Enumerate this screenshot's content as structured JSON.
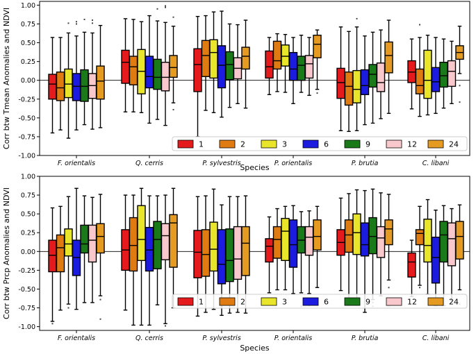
{
  "figure": {
    "legend_title_values": [
      "1",
      "2",
      "3",
      "6",
      "9",
      "12",
      "24"
    ]
  },
  "chart_data": [
    {
      "type": "boxplot",
      "ylabel": "Corr btw Tmean Anomalies and NDVI",
      "xlabel": "Species",
      "ylim": [
        -1.0,
        1.05
      ],
      "yticks": [
        "-1.00",
        "-0.75",
        "-0.50",
        "-0.25",
        "0.00",
        "0.25",
        "0.50",
        "0.75",
        "1.00"
      ],
      "categories": [
        "F. orientalis",
        "Q. cerris",
        "P. sylvestris",
        "P. orientalis",
        "P. brutia",
        "C. libani"
      ],
      "legend": {
        "placement": "lower-right",
        "entries": [
          "1",
          "2",
          "3",
          "6",
          "9",
          "12",
          "24"
        ]
      },
      "series_colors": [
        "#e41a1c",
        "#e07b12",
        "#e8e52a",
        "#1c1ce0",
        "#1a7a1a",
        "#f9c8cc",
        "#e59a22"
      ],
      "boxes": [
        [
          {
            "whislo": -0.7,
            "q1": -0.25,
            "med": -0.05,
            "q3": 0.08,
            "whishi": 0.57,
            "fliers": []
          },
          {
            "whislo": -0.66,
            "q1": -0.27,
            "med": -0.1,
            "q3": 0.11,
            "whishi": 0.57,
            "fliers": []
          },
          {
            "whislo": -0.77,
            "q1": -0.23,
            "med": -0.05,
            "q3": 0.15,
            "whishi": 0.63,
            "fliers": [
              0.76
            ]
          },
          {
            "whislo": -0.66,
            "q1": -0.27,
            "med": -0.08,
            "q3": 0.09,
            "whishi": 0.59,
            "fliers": [
              0.75,
              0.78
            ]
          },
          {
            "whislo": -0.59,
            "q1": -0.28,
            "med": -0.08,
            "q3": 0.14,
            "whishi": 0.64,
            "fliers": [
              0.81
            ]
          },
          {
            "whislo": -0.65,
            "q1": -0.24,
            "med": -0.07,
            "q3": 0.09,
            "whishi": 0.63,
            "fliers": [
              0.76,
              0.8
            ]
          },
          {
            "whislo": -0.63,
            "q1": -0.25,
            "med": -0.01,
            "q3": 0.19,
            "whishi": 0.73,
            "fliers": []
          }
        ],
        [
          {
            "whislo": -0.42,
            "q1": -0.04,
            "med": 0.24,
            "q3": 0.4,
            "whishi": 0.82,
            "fliers": []
          },
          {
            "whislo": -0.42,
            "q1": -0.06,
            "med": 0.18,
            "q3": 0.32,
            "whishi": 0.81,
            "fliers": []
          },
          {
            "whislo": -0.43,
            "q1": -0.18,
            "med": 0.12,
            "q3": 0.41,
            "whishi": 0.78,
            "fliers": []
          },
          {
            "whislo": -0.57,
            "q1": -0.1,
            "med": 0.05,
            "q3": 0.32,
            "whishi": 0.86,
            "fliers": []
          },
          {
            "whislo": -0.52,
            "q1": -0.12,
            "med": 0.04,
            "q3": 0.28,
            "whishi": 0.79,
            "fliers": [
              0.95
            ]
          },
          {
            "whislo": -0.6,
            "q1": -0.14,
            "med": 0.04,
            "q3": 0.24,
            "whishi": 0.77,
            "fliers": [
              0.97,
              0.99
            ]
          },
          {
            "whislo": -0.3,
            "q1": 0.04,
            "med": 0.17,
            "q3": 0.33,
            "whishi": 0.72,
            "fliers": [
              -0.39,
              0.84
            ]
          }
        ],
        [
          {
            "whislo": -0.75,
            "q1": -0.15,
            "med": 0.21,
            "q3": 0.42,
            "whishi": 0.85,
            "fliers": []
          },
          {
            "whislo": -0.4,
            "q1": 0.05,
            "med": 0.33,
            "q3": 0.53,
            "whishi": 0.86,
            "fliers": []
          },
          {
            "whislo": -0.43,
            "q1": 0.03,
            "med": 0.37,
            "q3": 0.54,
            "whishi": 0.91,
            "fliers": []
          },
          {
            "whislo": -0.49,
            "q1": -0.1,
            "med": 0.2,
            "q3": 0.46,
            "whishi": 0.92,
            "fliers": []
          },
          {
            "whislo": -0.36,
            "q1": 0.01,
            "med": 0.21,
            "q3": 0.38,
            "whishi": 0.75,
            "fliers": []
          },
          {
            "whislo": -0.31,
            "q1": 0.02,
            "med": 0.16,
            "q3": 0.3,
            "whishi": 0.74,
            "fliers": []
          },
          {
            "whislo": -0.37,
            "q1": 0.15,
            "med": 0.32,
            "q3": 0.44,
            "whishi": 0.8,
            "fliers": []
          }
        ],
        [
          {
            "whislo": -0.19,
            "q1": 0.03,
            "med": 0.18,
            "q3": 0.39,
            "whishi": 0.57,
            "fliers": []
          },
          {
            "whislo": -0.15,
            "q1": 0.15,
            "med": 0.26,
            "q3": 0.52,
            "whishi": 0.62,
            "fliers": []
          },
          {
            "whislo": -0.16,
            "q1": 0.19,
            "med": 0.32,
            "q3": 0.47,
            "whishi": 0.61,
            "fliers": []
          },
          {
            "whislo": -0.31,
            "q1": 0.0,
            "med": 0.15,
            "q3": 0.37,
            "whishi": 0.57,
            "fliers": []
          },
          {
            "whislo": -0.16,
            "q1": 0.0,
            "med": 0.2,
            "q3": 0.32,
            "whishi": 0.6,
            "fliers": []
          },
          {
            "whislo": -0.2,
            "q1": 0.03,
            "med": 0.22,
            "q3": 0.33,
            "whishi": 0.57,
            "fliers": []
          },
          {
            "whislo": -0.12,
            "q1": 0.3,
            "med": 0.48,
            "q3": 0.6,
            "whishi": 0.67,
            "fliers": [
              -0.17
            ]
          }
        ],
        [
          {
            "whislo": -0.67,
            "q1": -0.24,
            "med": -0.03,
            "q3": 0.16,
            "whishi": 0.71,
            "fliers": []
          },
          {
            "whislo": -0.68,
            "q1": -0.33,
            "med": -0.08,
            "q3": 0.11,
            "whishi": 0.65,
            "fliers": []
          },
          {
            "whislo": -0.67,
            "q1": -0.3,
            "med": -0.12,
            "q3": 0.13,
            "whishi": 0.71,
            "fliers": [
              0.82
            ]
          },
          {
            "whislo": -0.59,
            "q1": -0.19,
            "med": -0.07,
            "q3": 0.14,
            "whishi": 0.59,
            "fliers": []
          },
          {
            "whislo": -0.57,
            "q1": -0.09,
            "med": 0.08,
            "q3": 0.21,
            "whishi": 0.64,
            "fliers": []
          },
          {
            "whislo": -0.51,
            "q1": -0.15,
            "med": -0.03,
            "q3": 0.23,
            "whishi": 0.67,
            "fliers": []
          },
          {
            "whislo": -0.44,
            "q1": 0.1,
            "med": 0.33,
            "q3": 0.51,
            "whishi": 0.8,
            "fliers": []
          }
        ],
        [
          {
            "whislo": -0.38,
            "q1": -0.03,
            "med": 0.11,
            "q3": 0.26,
            "whishi": 0.55,
            "fliers": []
          },
          {
            "whislo": -0.48,
            "q1": -0.18,
            "med": -0.07,
            "q3": 0.15,
            "whishi": 0.57,
            "fliers": [
              0.74
            ]
          },
          {
            "whislo": -0.46,
            "q1": -0.24,
            "med": 0.0,
            "q3": 0.4,
            "whishi": 0.6,
            "fliers": []
          },
          {
            "whislo": -0.44,
            "q1": -0.15,
            "med": -0.02,
            "q3": 0.17,
            "whishi": 0.57,
            "fliers": []
          },
          {
            "whislo": -0.37,
            "q1": -0.09,
            "med": 0.06,
            "q3": 0.24,
            "whishi": 0.55,
            "fliers": []
          },
          {
            "whislo": -0.31,
            "q1": -0.08,
            "med": 0.12,
            "q3": 0.26,
            "whishi": 0.52,
            "fliers": []
          },
          {
            "whislo": 0.09,
            "q1": 0.28,
            "med": 0.37,
            "q3": 0.46,
            "whishi": 0.72,
            "fliers": [
              -0.07,
              -0.29
            ]
          }
        ]
      ]
    },
    {
      "type": "boxplot",
      "ylabel": "Corr btw Prcp Anomalies and NDVI",
      "xlabel": "Species",
      "ylim": [
        -1.05,
        1.0
      ],
      "yticks": [
        "-1.00",
        "-0.75",
        "-0.50",
        "-0.25",
        "0.00",
        "0.25",
        "0.50",
        "0.75",
        "1.00"
      ],
      "categories": [
        "F. orientalis",
        "Q. cerris",
        "P. sylvestris",
        "P. orientalis",
        "P. brutia",
        "C. libani"
      ],
      "legend": {
        "placement": "lower-right",
        "entries": [
          "1",
          "2",
          "3",
          "6",
          "9",
          "12",
          "24"
        ]
      },
      "series_colors": [
        "#e41a1c",
        "#e07b12",
        "#e8e52a",
        "#1c1ce0",
        "#1a7a1a",
        "#f9c8cc",
        "#e59a22"
      ],
      "boxes": [
        [
          {
            "whislo": -0.93,
            "q1": -0.27,
            "med": -0.05,
            "q3": 0.15,
            "whishi": 0.58,
            "fliers": [
              -0.96
            ]
          },
          {
            "whislo": -0.78,
            "q1": -0.27,
            "med": 0.05,
            "q3": 0.22,
            "whishi": 0.6,
            "fliers": []
          },
          {
            "whislo": -0.7,
            "q1": -0.06,
            "med": 0.1,
            "q3": 0.3,
            "whishi": 0.73,
            "fliers": [
              -0.75
            ]
          },
          {
            "whislo": -0.77,
            "q1": -0.32,
            "med": -0.08,
            "q3": 0.15,
            "whishi": 0.84,
            "fliers": []
          },
          {
            "whislo": -0.68,
            "q1": -0.02,
            "med": 0.1,
            "q3": 0.35,
            "whishi": 0.74,
            "fliers": []
          },
          {
            "whislo": -0.68,
            "q1": -0.14,
            "med": 0.15,
            "q3": 0.35,
            "whishi": 0.72,
            "fliers": []
          },
          {
            "whislo": -0.59,
            "q1": -0.02,
            "med": 0.2,
            "q3": 0.37,
            "whishi": 0.76,
            "fliers": [
              -0.64,
              -0.9
            ]
          }
        ],
        [
          {
            "whislo": -0.78,
            "q1": -0.25,
            "med": 0.02,
            "q3": 0.29,
            "whishi": 0.75,
            "fliers": []
          },
          {
            "whislo": -0.98,
            "q1": -0.26,
            "med": 0.08,
            "q3": 0.45,
            "whishi": 0.75,
            "fliers": []
          },
          {
            "whislo": -0.98,
            "q1": -0.12,
            "med": 0.16,
            "q3": 0.61,
            "whishi": 0.84,
            "fliers": []
          },
          {
            "whislo": -0.98,
            "q1": -0.26,
            "med": 0.02,
            "q3": 0.32,
            "whishi": 0.74,
            "fliers": []
          },
          {
            "whislo": -0.71,
            "q1": -0.23,
            "med": 0.16,
            "q3": 0.4,
            "whishi": 0.74,
            "fliers": []
          },
          {
            "whislo": -0.96,
            "q1": -0.11,
            "med": 0.21,
            "q3": 0.37,
            "whishi": 0.75,
            "fliers": [
              -0.99
            ]
          },
          {
            "whislo": -0.75,
            "q1": -0.21,
            "med": 0.38,
            "q3": 0.49,
            "whishi": 0.84,
            "fliers": []
          }
        ],
        [
          {
            "whislo": -0.86,
            "q1": -0.35,
            "med": -0.01,
            "q3": 0.28,
            "whishi": 0.73,
            "fliers": []
          },
          {
            "whislo": -0.81,
            "q1": -0.33,
            "med": -0.04,
            "q3": 0.29,
            "whishi": 0.74,
            "fliers": []
          },
          {
            "whislo": -0.77,
            "q1": -0.26,
            "med": 0.03,
            "q3": 0.39,
            "whishi": 0.83,
            "fliers": []
          },
          {
            "whislo": -0.85,
            "q1": -0.43,
            "med": -0.17,
            "q3": 0.29,
            "whishi": 0.62,
            "fliers": []
          },
          {
            "whislo": -0.82,
            "q1": -0.4,
            "med": -0.12,
            "q3": 0.3,
            "whishi": 0.73,
            "fliers": []
          },
          {
            "whislo": -0.81,
            "q1": -0.37,
            "med": -0.1,
            "q3": 0.33,
            "whishi": 0.73,
            "fliers": []
          },
          {
            "whislo": -0.82,
            "q1": -0.32,
            "med": 0.11,
            "q3": 0.33,
            "whishi": 0.74,
            "fliers": []
          }
        ],
        [
          {
            "whislo": -0.55,
            "q1": -0.14,
            "med": 0.07,
            "q3": 0.17,
            "whishi": 0.46,
            "fliers": []
          },
          {
            "whislo": -0.51,
            "q1": -0.09,
            "med": 0.16,
            "q3": 0.33,
            "whishi": 0.57,
            "fliers": []
          },
          {
            "whislo": -0.51,
            "q1": -0.12,
            "med": 0.27,
            "q3": 0.44,
            "whishi": 0.6,
            "fliers": []
          },
          {
            "whislo": -0.56,
            "q1": -0.21,
            "med": 0.09,
            "q3": 0.42,
            "whishi": 0.61,
            "fliers": []
          },
          {
            "whislo": -0.55,
            "q1": -0.02,
            "med": 0.15,
            "q3": 0.33,
            "whishi": 0.53,
            "fliers": [
              -0.73
            ]
          },
          {
            "whislo": -0.56,
            "q1": -0.05,
            "med": 0.19,
            "q3": 0.33,
            "whishi": 0.54,
            "fliers": [
              -0.72
            ]
          },
          {
            "whislo": -0.48,
            "q1": 0.02,
            "med": 0.2,
            "q3": 0.42,
            "whishi": 0.6,
            "fliers": []
          }
        ],
        [
          {
            "whislo": -0.52,
            "q1": -0.05,
            "med": 0.12,
            "q3": 0.29,
            "whishi": 0.71,
            "fliers": []
          },
          {
            "whislo": -0.65,
            "q1": -0.01,
            "med": 0.22,
            "q3": 0.42,
            "whishi": 0.77,
            "fliers": []
          },
          {
            "whislo": -0.71,
            "q1": -0.04,
            "med": 0.25,
            "q3": 0.5,
            "whishi": 0.82,
            "fliers": []
          },
          {
            "whislo": -0.81,
            "q1": -0.06,
            "med": 0.09,
            "q3": 0.38,
            "whishi": 0.81,
            "fliers": []
          },
          {
            "whislo": -0.64,
            "q1": -0.03,
            "med": 0.2,
            "q3": 0.45,
            "whishi": 0.83,
            "fliers": [
              -0.68,
              -0.73
            ]
          },
          {
            "whislo": -0.59,
            "q1": -0.08,
            "med": 0.18,
            "q3": 0.33,
            "whishi": 0.78,
            "fliers": []
          },
          {
            "whislo": -0.38,
            "q1": 0.09,
            "med": 0.3,
            "q3": 0.42,
            "whishi": 0.76,
            "fliers": [
              -0.48,
              -0.68,
              -0.72
            ]
          }
        ],
        [
          {
            "whislo": -0.6,
            "q1": -0.34,
            "med": -0.14,
            "q3": -0.02,
            "whishi": 0.15,
            "fliers": []
          },
          {
            "whislo": -0.45,
            "q1": 0.09,
            "med": 0.24,
            "q3": 0.29,
            "whishi": 0.6,
            "fliers": [
              -0.48
            ]
          },
          {
            "whislo": -0.57,
            "q1": -0.14,
            "med": 0.08,
            "q3": 0.43,
            "whishi": 0.69,
            "fliers": []
          },
          {
            "whislo": -0.72,
            "q1": -0.42,
            "med": -0.08,
            "q3": 0.19,
            "whishi": 0.55,
            "fliers": []
          },
          {
            "whislo": -0.72,
            "q1": -0.14,
            "med": 0.22,
            "q3": 0.4,
            "whishi": 0.61,
            "fliers": []
          },
          {
            "whislo": -0.65,
            "q1": -0.19,
            "med": 0.17,
            "q3": 0.38,
            "whishi": 0.57,
            "fliers": []
          },
          {
            "whislo": -0.51,
            "q1": -0.1,
            "med": 0.2,
            "q3": 0.4,
            "whishi": 0.62,
            "fliers": [
              -0.7
            ]
          }
        ]
      ]
    }
  ]
}
